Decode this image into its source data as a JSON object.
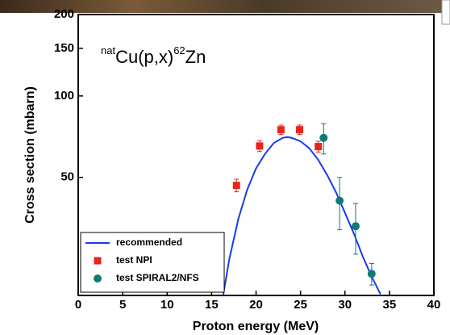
{
  "chart_data": {
    "type": "scatter",
    "title_parts": [
      "nat",
      "Cu(p,x)",
      "62",
      "Zn"
    ],
    "xlabel": "Proton energy (MeV)",
    "ylabel": "Cross section (mbarn)",
    "xlim": [
      0,
      40
    ],
    "xticks": [
      0,
      5,
      10,
      15,
      20,
      25,
      30,
      35,
      40
    ],
    "ylim": [
      18.3,
      200
    ],
    "yticks": [
      50,
      100,
      150,
      200
    ],
    "log_y": true,
    "legend": "lower left",
    "series": [
      {
        "name": "recommended",
        "color": "#1a3be8",
        "style": "line",
        "x": [
          16.3,
          17,
          18,
          19,
          20,
          21,
          22,
          23,
          23.5,
          24,
          25,
          26,
          27,
          28,
          29,
          30,
          31,
          32,
          33,
          34
        ],
        "values": [
          18.3,
          25,
          35,
          45,
          54,
          61,
          67,
          70,
          70.5,
          70,
          68,
          64,
          58,
          51,
          44,
          37,
          31,
          25.5,
          21.5,
          18.5
        ]
      },
      {
        "name": "test NPI",
        "color": "#e8251b",
        "style": "markers",
        "marker": "square",
        "x": [
          17.8,
          20.4,
          22.8,
          24.9,
          27.0
        ],
        "values": [
          46.7,
          65.3,
          75,
          75,
          65
        ],
        "errors": [
          2.5,
          3,
          3,
          3,
          3
        ]
      },
      {
        "name": "test SPIRAL2/NFS",
        "color": "#117a76",
        "style": "markers",
        "marker": "circle",
        "x": [
          27.6,
          29.4,
          31.2,
          33.0
        ],
        "values": [
          70,
          41,
          33,
          22
        ],
        "errors": [
          9,
          9,
          7,
          2
        ]
      }
    ]
  }
}
